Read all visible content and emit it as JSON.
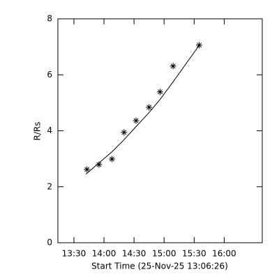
{
  "chart_data": {
    "type": "scatter",
    "xlabel": "Start Time (25-Nov-25 13:06:26)",
    "ylabel": "R/Rs",
    "series": [
      {
        "color": "#000000",
        "marker": "asterisk",
        "x": [
          823,
          835,
          848,
          860,
          872,
          885,
          896,
          909,
          935
        ],
        "values": [
          2.62,
          2.79,
          2.99,
          3.94,
          4.36,
          4.84,
          5.39,
          6.31,
          7.06
        ]
      },
      {
        "color": "#000000",
        "marker": "line",
        "x": [
          822,
          835,
          848,
          860,
          872,
          885,
          896,
          909,
          935
        ],
        "values": [
          2.45,
          2.85,
          3.25,
          3.68,
          4.15,
          4.65,
          5.12,
          5.75,
          7.05
        ]
      }
    ],
    "xlim": [
      794,
      998
    ],
    "xticks": [
      {
        "value": 810,
        "label": "13:30"
      },
      {
        "value": 840,
        "label": "14:00"
      },
      {
        "value": 870,
        "label": "14:30"
      },
      {
        "value": 900,
        "label": "15:00"
      },
      {
        "value": 930,
        "label": "15:30"
      },
      {
        "value": 960,
        "label": "16:00"
      }
    ],
    "ylim": [
      0,
      8
    ],
    "yticks": [
      0,
      2,
      4,
      6,
      8
    ],
    "grid": false
  }
}
